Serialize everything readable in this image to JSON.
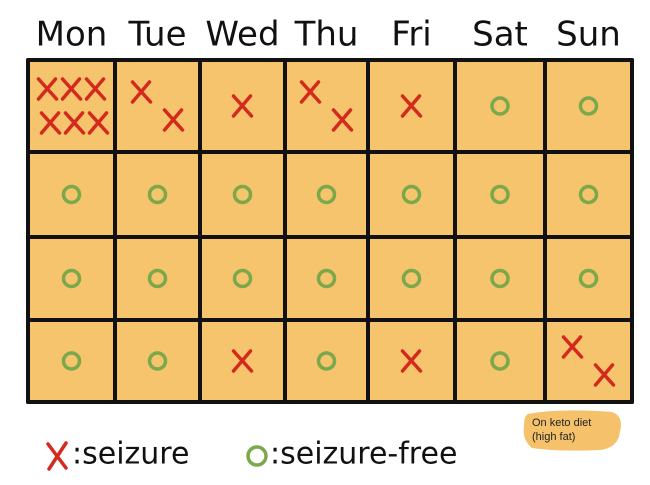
{
  "days": [
    "Mon",
    "Tue",
    "Wed",
    "Thu",
    "Fri",
    "Sat",
    "Sun"
  ],
  "weeks": [
    [
      6,
      2,
      1,
      2,
      1,
      0,
      0
    ],
    [
      0,
      0,
      0,
      0,
      0,
      0,
      0
    ],
    [
      0,
      0,
      0,
      0,
      0,
      0,
      0
    ],
    [
      0,
      0,
      1,
      0,
      1,
      0,
      2
    ]
  ],
  "legend": [
    ":seizure",
    ":seizure-free"
  ],
  "note": [
    "On keto diet",
    "(high fat)"
  ]
}
